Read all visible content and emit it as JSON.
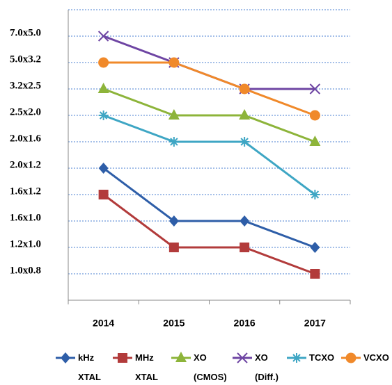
{
  "chart_data": {
    "type": "line",
    "categories": [
      "2014",
      "2015",
      "2016",
      "2017"
    ],
    "ylim": [
      0,
      11
    ],
    "yticks": [
      {
        "value": 1,
        "label": "1.0x0.8"
      },
      {
        "value": 2,
        "label": "1.2x1.0"
      },
      {
        "value": 3,
        "label": "1.6x1.0"
      },
      {
        "value": 4,
        "label": "1.6x1.2"
      },
      {
        "value": 5,
        "label": "2.0x1.2"
      },
      {
        "value": 6,
        "label": "2.0x1.6"
      },
      {
        "value": 7,
        "label": "2.5x2.0"
      },
      {
        "value": 8,
        "label": "3.2x2.5"
      },
      {
        "value": 9,
        "label": "5.0x3.2"
      },
      {
        "value": 10,
        "label": "7.0x5.0"
      }
    ],
    "grid": true,
    "legend": "bottom",
    "series": [
      {
        "name": "kHz XTAL",
        "color": "#2e5ea8",
        "marker": "diamond",
        "values": [
          5,
          3,
          3,
          2
        ]
      },
      {
        "name": "MHz XTAL",
        "color": "#b23b3b",
        "marker": "square",
        "values": [
          4,
          2,
          2,
          1
        ]
      },
      {
        "name": "XO (CMOS)",
        "color": "#8db43a",
        "marker": "triangle",
        "values": [
          8,
          7,
          7,
          6
        ]
      },
      {
        "name": "XO (Diff.)",
        "color": "#6e45a3",
        "marker": "x",
        "values": [
          10,
          9,
          8,
          8
        ]
      },
      {
        "name": "TCXO",
        "color": "#3ea6c4",
        "marker": "star",
        "values": [
          7,
          6,
          6,
          4
        ]
      },
      {
        "name": "VCXO",
        "color": "#f0892a",
        "marker": "circle",
        "values": [
          9,
          9,
          8,
          7
        ]
      }
    ]
  }
}
